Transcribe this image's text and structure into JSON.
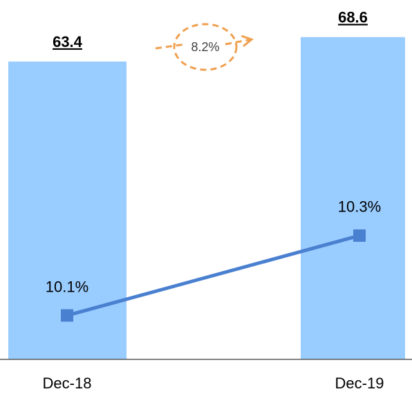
{
  "chart_data": {
    "type": "bar",
    "categories": [
      "Dec-18",
      "Dec-19"
    ],
    "series": [
      {
        "type": "bar",
        "color": "#99ccff",
        "values": [
          63.4,
          68.6
        ]
      },
      {
        "type": "line",
        "axis": "y2",
        "color": "#4a80d0",
        "values": [
          10.1,
          10.3
        ],
        "value_labels": [
          "10.1%",
          "10.3%"
        ]
      }
    ],
    "ylim": [
      0,
      76.5
    ],
    "y2lim": [
      9.99,
      10.89
    ],
    "annotation": "8.2%",
    "annotation_color": "#f0a050"
  }
}
